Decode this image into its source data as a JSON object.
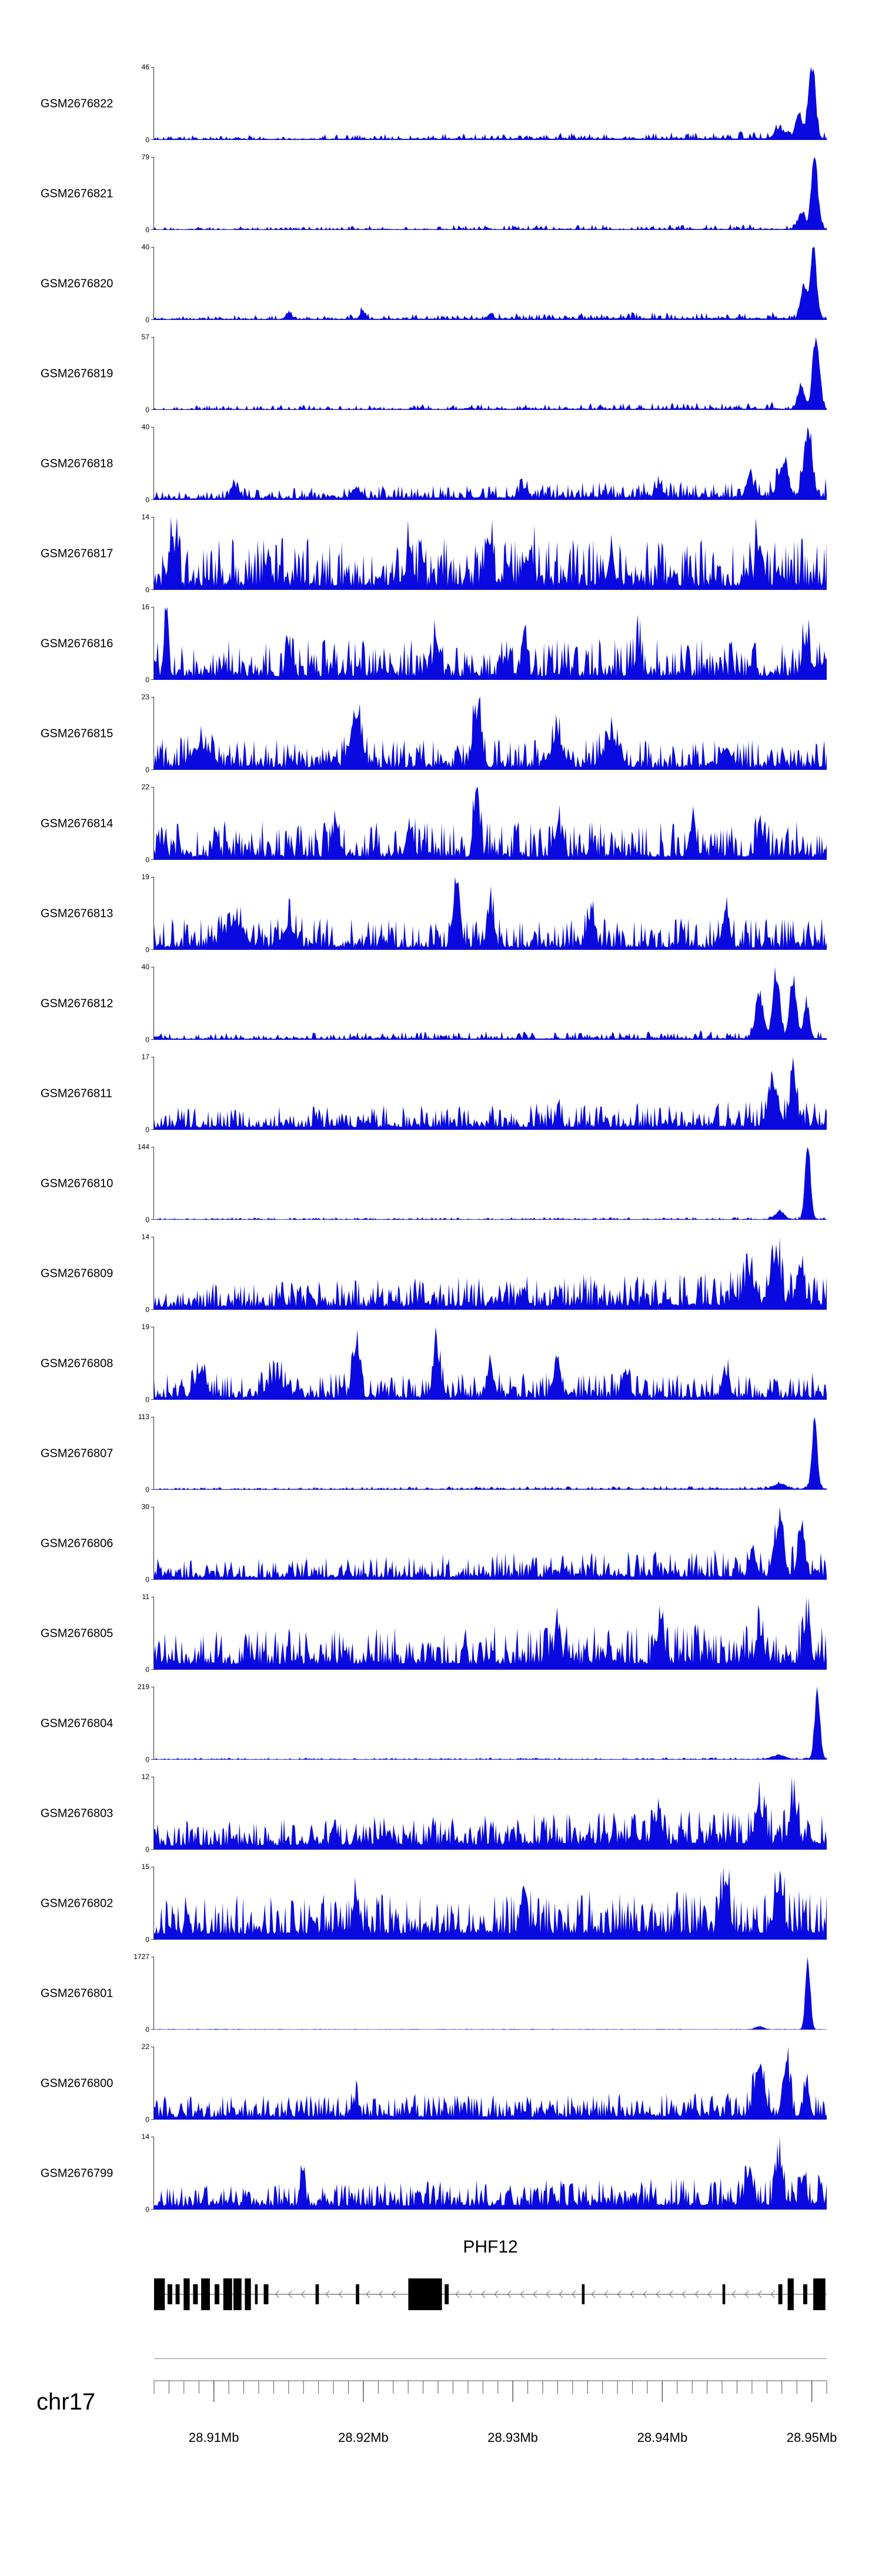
{
  "colors": {
    "signal": "#0a0ae0",
    "exon": "#000000",
    "gene_line": "#666666",
    "axis": "#555555",
    "text": "#000000"
  },
  "chart_data": {
    "type": "area",
    "description": "Genome browser coverage tracks over chr17 28.906-28.951 Mb at the PHF12 locus",
    "chromosome": "chr17",
    "x_range_mb": [
      28.906,
      28.951
    ],
    "x_tick_positions_mb": [
      28.91,
      28.92,
      28.93,
      28.94,
      28.95
    ],
    "x_tick_labels": [
      "28.91Mb",
      "28.92Mb",
      "28.93Mb",
      "28.94Mb",
      "28.95Mb"
    ],
    "y_zero_label": "0",
    "gene": {
      "label": "PHF12",
      "strand": "-",
      "exons": [
        [
          0.0,
          0.016,
          1
        ],
        [
          0.02,
          0.007,
          0
        ],
        [
          0.032,
          0.006,
          0
        ],
        [
          0.044,
          0.009,
          1
        ],
        [
          0.058,
          0.007,
          0
        ],
        [
          0.07,
          0.013,
          1
        ],
        [
          0.09,
          0.007,
          0
        ],
        [
          0.103,
          0.013,
          1
        ],
        [
          0.118,
          0.012,
          1
        ],
        [
          0.135,
          0.009,
          1
        ],
        [
          0.15,
          0.004,
          0
        ],
        [
          0.163,
          0.007,
          0
        ],
        [
          0.24,
          0.005,
          0
        ],
        [
          0.3,
          0.005,
          0
        ],
        [
          0.378,
          0.05,
          1
        ],
        [
          0.432,
          0.006,
          0
        ],
        [
          0.636,
          0.004,
          0
        ],
        [
          0.845,
          0.004,
          0
        ],
        [
          0.928,
          0.006,
          0
        ],
        [
          0.942,
          0.009,
          1
        ],
        [
          0.965,
          0.006,
          0
        ],
        [
          0.98,
          0.018,
          1
        ]
      ]
    },
    "tracks": [
      {
        "name": "GSM2676822",
        "ymax": "46",
        "seed": 1,
        "base": 0.01,
        "noise": 0.05,
        "sharp": 4,
        "ramp": 1.0,
        "peaks": [
          [
            0.978,
            0.005,
            1.0
          ],
          [
            0.958,
            0.005,
            0.3
          ],
          [
            0.93,
            0.007,
            0.12
          ]
        ]
      },
      {
        "name": "GSM2676821",
        "ymax": "79",
        "seed": 2,
        "base": 0.008,
        "noise": 0.045,
        "sharp": 4,
        "ramp": 0.8,
        "peaks": [
          [
            0.982,
            0.005,
            1.0
          ],
          [
            0.962,
            0.005,
            0.22
          ]
        ]
      },
      {
        "name": "GSM2676820",
        "ymax": "40",
        "seed": 3,
        "base": 0.012,
        "noise": 0.06,
        "sharp": 4,
        "ramp": 0.9,
        "peaks": [
          [
            0.98,
            0.005,
            1.0
          ],
          [
            0.965,
            0.004,
            0.5
          ],
          [
            0.2,
            0.004,
            0.1
          ],
          [
            0.31,
            0.004,
            0.12
          ],
          [
            0.5,
            0.004,
            0.08
          ]
        ]
      },
      {
        "name": "GSM2676819",
        "ymax": "57",
        "seed": 4,
        "base": 0.008,
        "noise": 0.05,
        "sharp": 4,
        "ramp": 0.9,
        "peaks": [
          [
            0.984,
            0.005,
            1.0
          ],
          [
            0.962,
            0.005,
            0.28
          ]
        ]
      },
      {
        "name": "GSM2676818",
        "ymax": "40",
        "seed": 5,
        "base": 0.02,
        "noise": 0.13,
        "sharp": 3,
        "ramp": 1.4,
        "peaks": [
          [
            0.972,
            0.006,
            1.0
          ],
          [
            0.935,
            0.007,
            0.5
          ],
          [
            0.12,
            0.006,
            0.2
          ],
          [
            0.3,
            0.005,
            0.16
          ],
          [
            0.55,
            0.005,
            0.14
          ],
          [
            0.75,
            0.005,
            0.18
          ],
          [
            0.885,
            0.005,
            0.3
          ]
        ]
      },
      {
        "name": "GSM2676817",
        "ymax": "14",
        "seed": 6,
        "base": 0.05,
        "noise": 0.55,
        "sharp": 2,
        "ramp": 0,
        "peaks": [
          [
            0.03,
            0.005,
            0.4
          ],
          [
            0.38,
            0.004,
            0.5
          ],
          [
            0.5,
            0.004,
            0.45
          ],
          [
            0.56,
            0.004,
            0.4
          ],
          [
            0.68,
            0.004,
            0.35
          ],
          [
            0.9,
            0.005,
            0.4
          ]
        ]
      },
      {
        "name": "GSM2676816",
        "ymax": "16",
        "seed": 7,
        "base": 0.05,
        "noise": 0.5,
        "sharp": 2,
        "ramp": 0,
        "peaks": [
          [
            0.018,
            0.003,
            0.95
          ],
          [
            0.2,
            0.004,
            0.35
          ],
          [
            0.42,
            0.004,
            0.45
          ],
          [
            0.55,
            0.004,
            0.5
          ],
          [
            0.72,
            0.004,
            0.4
          ],
          [
            0.97,
            0.005,
            0.45
          ]
        ]
      },
      {
        "name": "GSM2676815",
        "ymax": "23",
        "seed": 8,
        "base": 0.04,
        "noise": 0.45,
        "sharp": 2.2,
        "ramp": 0,
        "peaks": [
          [
            0.07,
            0.014,
            0.3
          ],
          [
            0.3,
            0.008,
            0.75
          ],
          [
            0.48,
            0.006,
            0.85
          ],
          [
            0.6,
            0.009,
            0.4
          ],
          [
            0.68,
            0.011,
            0.45
          ],
          [
            0.85,
            0.007,
            0.3
          ]
        ]
      },
      {
        "name": "GSM2676814",
        "ymax": "22",
        "seed": 9,
        "base": 0.04,
        "noise": 0.45,
        "sharp": 2.2,
        "ramp": 0,
        "peaks": [
          [
            0.48,
            0.004,
            0.9
          ],
          [
            0.27,
            0.005,
            0.4
          ],
          [
            0.38,
            0.005,
            0.35
          ],
          [
            0.6,
            0.005,
            0.3
          ],
          [
            0.8,
            0.005,
            0.35
          ],
          [
            0.9,
            0.004,
            0.3
          ]
        ]
      },
      {
        "name": "GSM2676813",
        "ymax": "19",
        "seed": 10,
        "base": 0.04,
        "noise": 0.45,
        "sharp": 2.2,
        "ramp": 0,
        "peaks": [
          [
            0.12,
            0.013,
            0.35
          ],
          [
            0.2,
            0.009,
            0.3
          ],
          [
            0.45,
            0.005,
            0.85
          ],
          [
            0.5,
            0.005,
            0.55
          ],
          [
            0.65,
            0.005,
            0.45
          ],
          [
            0.85,
            0.005,
            0.55
          ]
        ]
      },
      {
        "name": "GSM2676812",
        "ymax": "40",
        "seed": 11,
        "base": 0.015,
        "noise": 0.09,
        "sharp": 3.5,
        "ramp": 0.4,
        "peaks": [
          [
            0.9,
            0.006,
            0.65
          ],
          [
            0.925,
            0.005,
            1.0
          ],
          [
            0.95,
            0.005,
            0.85
          ],
          [
            0.97,
            0.004,
            0.55
          ]
        ]
      },
      {
        "name": "GSM2676811",
        "ymax": "17",
        "seed": 12,
        "base": 0.05,
        "noise": 0.4,
        "sharp": 2.4,
        "ramp": 0.3,
        "peaks": [
          [
            0.92,
            0.007,
            0.85
          ],
          [
            0.95,
            0.005,
            1.0
          ],
          [
            0.6,
            0.004,
            0.25
          ]
        ]
      },
      {
        "name": "GSM2676810",
        "ymax": "144",
        "seed": 13,
        "base": 0.006,
        "noise": 0.025,
        "sharp": 4,
        "ramp": 0.3,
        "peaks": [
          [
            0.972,
            0.004,
            1.0
          ],
          [
            0.93,
            0.007,
            0.1
          ]
        ]
      },
      {
        "name": "GSM2676809",
        "ymax": "14",
        "seed": 14,
        "base": 0.06,
        "noise": 0.45,
        "sharp": 2.2,
        "ramp": 0.7,
        "peaks": [
          [
            0.885,
            0.006,
            0.55
          ],
          [
            0.925,
            0.006,
            0.9
          ],
          [
            0.96,
            0.005,
            0.75
          ],
          [
            0.55,
            0.004,
            0.3
          ]
        ]
      },
      {
        "name": "GSM2676808",
        "ymax": "19",
        "seed": 15,
        "base": 0.04,
        "noise": 0.45,
        "sharp": 2.2,
        "ramp": 0,
        "peaks": [
          [
            0.07,
            0.007,
            0.45
          ],
          [
            0.18,
            0.011,
            0.3
          ],
          [
            0.3,
            0.005,
            0.85
          ],
          [
            0.42,
            0.005,
            0.8
          ],
          [
            0.5,
            0.005,
            0.55
          ],
          [
            0.6,
            0.005,
            0.65
          ],
          [
            0.7,
            0.005,
            0.45
          ],
          [
            0.85,
            0.005,
            0.35
          ]
        ]
      },
      {
        "name": "GSM2676807",
        "ymax": "113",
        "seed": 16,
        "base": 0.008,
        "noise": 0.03,
        "sharp": 4,
        "ramp": 0.8,
        "peaks": [
          [
            0.982,
            0.004,
            1.0
          ],
          [
            0.93,
            0.009,
            0.08
          ]
        ]
      },
      {
        "name": "GSM2676806",
        "ymax": "30",
        "seed": 17,
        "base": 0.04,
        "noise": 0.35,
        "sharp": 2.4,
        "ramp": 0.5,
        "peaks": [
          [
            0.93,
            0.006,
            0.95
          ],
          [
            0.962,
            0.005,
            0.8
          ],
          [
            0.89,
            0.005,
            0.45
          ]
        ]
      },
      {
        "name": "GSM2676805",
        "ymax": "11",
        "seed": 18,
        "base": 0.08,
        "noise": 0.5,
        "sharp": 2,
        "ramp": 0.2,
        "peaks": [
          [
            0.6,
            0.005,
            0.35
          ],
          [
            0.75,
            0.005,
            0.4
          ],
          [
            0.9,
            0.005,
            0.45
          ],
          [
            0.97,
            0.005,
            0.5
          ]
        ]
      },
      {
        "name": "GSM2676804",
        "ymax": "219",
        "seed": 19,
        "base": 0.006,
        "noise": 0.02,
        "sharp": 4,
        "ramp": 0.3,
        "peaks": [
          [
            0.986,
            0.004,
            1.0
          ],
          [
            0.93,
            0.009,
            0.06
          ]
        ]
      },
      {
        "name": "GSM2676803",
        "ymax": "12",
        "seed": 20,
        "base": 0.08,
        "noise": 0.45,
        "sharp": 2.1,
        "ramp": 0.5,
        "peaks": [
          [
            0.9,
            0.006,
            0.65
          ],
          [
            0.95,
            0.005,
            0.75
          ],
          [
            0.75,
            0.005,
            0.45
          ]
        ]
      },
      {
        "name": "GSM2676802",
        "ymax": "15",
        "seed": 21,
        "base": 0.07,
        "noise": 0.45,
        "sharp": 2.1,
        "ramp": 0.2,
        "peaks": [
          [
            0.3,
            0.004,
            0.45
          ],
          [
            0.55,
            0.004,
            0.55
          ],
          [
            0.85,
            0.005,
            0.6
          ],
          [
            0.93,
            0.005,
            0.55
          ]
        ]
      },
      {
        "name": "GSM2676801",
        "ymax": "1727",
        "seed": 22,
        "base": 0.004,
        "noise": 0.007,
        "sharp": 4,
        "ramp": 0,
        "peaks": [
          [
            0.972,
            0.0035,
            1.0
          ],
          [
            0.9,
            0.006,
            0.04
          ]
        ]
      },
      {
        "name": "GSM2676800",
        "ymax": "22",
        "seed": 23,
        "base": 0.05,
        "noise": 0.4,
        "sharp": 2.2,
        "ramp": 0.2,
        "peaks": [
          [
            0.9,
            0.007,
            0.9
          ],
          [
            0.94,
            0.005,
            1.0
          ],
          [
            0.97,
            0.004,
            0.65
          ],
          [
            0.3,
            0.004,
            0.25
          ]
        ]
      },
      {
        "name": "GSM2676799",
        "ymax": "14",
        "seed": 24,
        "base": 0.07,
        "noise": 0.45,
        "sharp": 2.1,
        "ramp": 0.5,
        "peaks": [
          [
            0.22,
            0.003,
            0.8
          ],
          [
            0.885,
            0.005,
            0.75
          ],
          [
            0.93,
            0.005,
            0.85
          ],
          [
            0.965,
            0.004,
            0.55
          ]
        ]
      }
    ]
  }
}
